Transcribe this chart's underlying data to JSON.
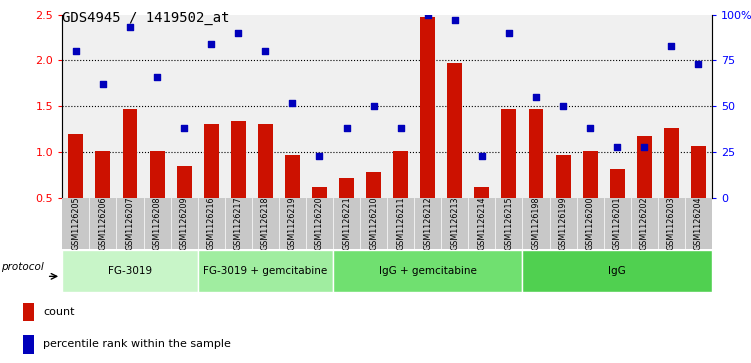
{
  "title": "GDS4945 / 1419502_at",
  "samples": [
    "GSM1126205",
    "GSM1126206",
    "GSM1126207",
    "GSM1126208",
    "GSM1126209",
    "GSM1126216",
    "GSM1126217",
    "GSM1126218",
    "GSM1126219",
    "GSM1126220",
    "GSM1126221",
    "GSM1126210",
    "GSM1126211",
    "GSM1126212",
    "GSM1126213",
    "GSM1126214",
    "GSM1126215",
    "GSM1126198",
    "GSM1126199",
    "GSM1126200",
    "GSM1126201",
    "GSM1126202",
    "GSM1126203",
    "GSM1126204"
  ],
  "bar_values": [
    1.2,
    1.01,
    1.47,
    1.01,
    0.85,
    1.31,
    1.34,
    1.31,
    0.97,
    0.62,
    0.72,
    0.78,
    1.01,
    2.47,
    1.97,
    0.62,
    1.47,
    1.47,
    0.97,
    1.01,
    0.82,
    1.18,
    1.26,
    1.07
  ],
  "dot_values_pct": [
    80,
    62,
    93,
    66,
    38,
    84,
    90,
    80,
    52,
    23,
    38,
    50,
    38,
    100,
    97,
    23,
    90,
    55,
    50,
    38,
    28,
    28,
    83,
    73
  ],
  "groups": [
    {
      "label": "FG-3019",
      "start": 0,
      "end": 5
    },
    {
      "label": "FG-3019 + gemcitabine",
      "start": 5,
      "end": 10
    },
    {
      "label": "IgG + gemcitabine",
      "start": 10,
      "end": 17
    },
    {
      "label": "IgG",
      "start": 17,
      "end": 24
    }
  ],
  "group_colors": [
    "#c8f5c8",
    "#a0eda0",
    "#70e070",
    "#50d050"
  ],
  "bar_color": "#cc1100",
  "dot_color": "#0000bb",
  "ylim_left": [
    0.5,
    2.5
  ],
  "ylim_right": [
    0,
    100
  ],
  "yticks_left": [
    0.5,
    1.0,
    1.5,
    2.0,
    2.5
  ],
  "ytick_right_vals": [
    0,
    25,
    50,
    75,
    100
  ],
  "ytick_right_labels": [
    "0",
    "25",
    "50",
    "75",
    "100%"
  ],
  "grid_values": [
    1.0,
    1.5,
    2.0
  ],
  "plot_bg": "#f0f0f0",
  "xtick_bg": "#c8c8c8",
  "title_fontsize": 10,
  "bar_bottom": 0.5
}
